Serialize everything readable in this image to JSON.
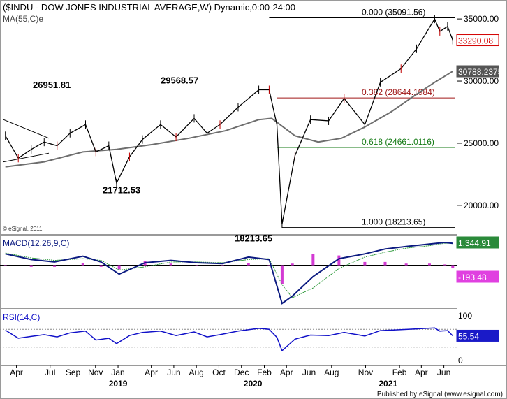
{
  "title": "($INDU - DOW JONES INDUSTRIAL AVERAGE,W) Dynamic,0:00-24:00",
  "ma_label": "MA(55,C)e",
  "copyright": "© eSignal, 2011",
  "published": "Published by eSignal (www.esignal.com)",
  "colors": {
    "price": "#000000",
    "ma": "#6e6e6e",
    "fib_0": "#000000",
    "fib_382": "#a01818",
    "fib_618": "#137a13",
    "fib_100": "#000000",
    "macd": "#0b1a80",
    "signal": "#2f9a3c",
    "hist": "#d33ad3",
    "rsi": "#1010c8",
    "last_price_bg": "#ffffff",
    "last_price_fg": "#d40000",
    "ma_tag_bg": "#555555",
    "macd_tag_bg": "#2a8a3a",
    "hist_tag_bg": "#e040e0",
    "rsi_tag_bg": "#1a1ac8"
  },
  "chart_data": [
    {
      "type": "line",
      "panel": "price",
      "title": "($INDU - DOW JONES INDUSTRIAL AVERAGE,W) Dynamic,0:00-24:00",
      "ylim": [
        17800,
        36300
      ],
      "yticks": [
        "35000.00",
        "30000.00",
        "25000.00",
        "20000.00"
      ],
      "ytick_values": [
        35000,
        30000,
        25000,
        20000
      ],
      "x_tick_labels": [
        "Apr",
        "Jul",
        "Sep",
        "Nov",
        "Jan",
        "Apr",
        "Jun",
        "Aug",
        "Oct",
        "Dec",
        "Feb",
        "Apr",
        "Jun",
        "Aug",
        "Nov",
        "Feb",
        "Apr",
        "Jun"
      ],
      "x_year_labels": [
        "2019",
        "2020",
        "2021"
      ],
      "series": [
        {
          "name": "$INDU",
          "x": [
            "2018-03-02",
            "2018-04-06",
            "2018-05-11",
            "2018-06-15",
            "2018-07-20",
            "2018-08-24",
            "2018-10-05",
            "2018-11-02",
            "2018-12-07",
            "2018-12-28",
            "2019-02-01",
            "2019-03-08",
            "2019-04-26",
            "2019-06-07",
            "2019-07-26",
            "2019-08-30",
            "2019-10-04",
            "2019-11-22",
            "2020-01-17",
            "2020-02-14",
            "2020-03-06",
            "2020-03-20",
            "2020-04-24",
            "2020-06-05",
            "2020-07-24",
            "2020-09-04",
            "2020-10-30",
            "2020-12-11",
            "2021-02-05",
            "2021-03-19",
            "2021-05-07",
            "2021-05-21",
            "2021-06-11",
            "2021-06-25"
          ],
          "values": [
            25600,
            23800,
            24500,
            25100,
            24800,
            25800,
            26500,
            24300,
            24800,
            21800,
            23900,
            25300,
            26500,
            25500,
            27000,
            25800,
            26500,
            27900,
            29300,
            29300,
            26500,
            18500,
            24000,
            26900,
            26800,
            28600,
            26500,
            29900,
            31000,
            32600,
            35000,
            34000,
            34400,
            33290.08
          ]
        },
        {
          "name": "MA(55,C)e",
          "x": [
            "2018-03-02",
            "2018-06-15",
            "2018-09-28",
            "2018-12-28",
            "2019-04-05",
            "2019-07-12",
            "2019-10-18",
            "2020-01-17",
            "2020-02-21",
            "2020-04-24",
            "2020-06-26",
            "2020-08-28",
            "2020-10-30",
            "2021-01-08",
            "2021-03-12",
            "2021-05-07",
            "2021-06-25"
          ],
          "values": [
            23100,
            23500,
            24300,
            24500,
            24900,
            25400,
            26000,
            26900,
            27000,
            25600,
            25100,
            25400,
            26300,
            27500,
            28800,
            29900,
            30788.2375
          ]
        }
      ],
      "fibonacci": [
        {
          "label": "0.000 (35091.56)",
          "value": 35091.56
        },
        {
          "label": "0.382 (28644.1984)",
          "value": 28644.1984
        },
        {
          "label": "0.618 (24661.0116)",
          "value": 24661.0116
        },
        {
          "label": "1.000 (18213.65)",
          "value": 18213.65
        }
      ],
      "annotations": [
        {
          "text": "26951.81",
          "x": "2018-03-09",
          "y": 26951.81
        },
        {
          "text": "21712.53",
          "x": "2018-12-28",
          "y": 21712.53
        },
        {
          "text": "29568.57",
          "x": "2020-02-14",
          "y": 29568.57
        },
        {
          "text": "18213.65",
          "x": "2020-03-20",
          "y": 18213.65
        }
      ],
      "tags": {
        "last": "33290.08",
        "ma": "30788.2375"
      }
    },
    {
      "type": "line",
      "panel": "macd",
      "title": "MACD(12,26,9,C)",
      "ylim": [
        -2600,
        1700
      ],
      "zero": 0,
      "series": [
        {
          "name": "MACD",
          "x": [
            "2018-03-02",
            "2018-05-11",
            "2018-07-13",
            "2018-09-28",
            "2018-11-16",
            "2019-01-04",
            "2019-03-15",
            "2019-05-24",
            "2019-08-02",
            "2019-10-11",
            "2019-12-20",
            "2020-02-14",
            "2020-03-20",
            "2020-04-17",
            "2020-06-12",
            "2020-08-21",
            "2020-10-30",
            "2020-12-24",
            "2021-02-19",
            "2021-04-23",
            "2021-06-04",
            "2021-06-25"
          ],
          "values": [
            700,
            350,
            200,
            550,
            200,
            -550,
            150,
            300,
            150,
            100,
            500,
            350,
            -2350,
            -1900,
            -700,
            400,
            700,
            1000,
            1150,
            1300,
            1400,
            1344.91
          ]
        },
        {
          "name": "Signal",
          "x": [
            "2018-03-02",
            "2018-05-11",
            "2018-07-13",
            "2018-09-28",
            "2018-11-16",
            "2019-01-04",
            "2019-03-15",
            "2019-05-24",
            "2019-08-02",
            "2019-10-11",
            "2019-12-20",
            "2020-02-14",
            "2020-03-20",
            "2020-04-17",
            "2020-06-12",
            "2020-08-21",
            "2020-10-30",
            "2020-12-24",
            "2021-02-19",
            "2021-04-23",
            "2021-06-04",
            "2021-06-25"
          ],
          "values": [
            750,
            450,
            300,
            400,
            300,
            -300,
            -100,
            200,
            200,
            150,
            350,
            400,
            -1200,
            -2000,
            -1400,
            -200,
            500,
            800,
            1050,
            1200,
            1350,
            1350
          ]
        },
        {
          "name": "Histogram",
          "x": [
            "2018-03-02",
            "2018-05-11",
            "2018-07-13",
            "2018-09-28",
            "2018-11-16",
            "2019-01-04",
            "2019-03-15",
            "2019-05-24",
            "2019-08-02",
            "2019-10-11",
            "2019-12-20",
            "2020-02-14",
            "2020-03-20",
            "2020-04-17",
            "2020-06-12",
            "2020-08-21",
            "2020-10-30",
            "2020-12-24",
            "2021-02-19",
            "2021-04-23",
            "2021-06-04",
            "2021-06-25"
          ],
          "values": [
            -50,
            -100,
            -100,
            150,
            -100,
            -250,
            250,
            100,
            -50,
            -50,
            150,
            -50,
            -1150,
            100,
            700,
            600,
            200,
            200,
            100,
            100,
            50,
            -193.48
          ]
        }
      ],
      "tags": {
        "macd": "1,344.91",
        "hist": "-193.48"
      }
    },
    {
      "type": "line",
      "panel": "rsi",
      "title": "RSI(14,C)",
      "ylim": [
        0,
        100
      ],
      "yticks": [
        "100",
        "0"
      ],
      "ytick_values": [
        100,
        0
      ],
      "levels": [
        70,
        30
      ],
      "series": [
        {
          "name": "RSI",
          "x": [
            "2018-03-02",
            "2018-04-06",
            "2018-05-11",
            "2018-06-15",
            "2018-07-20",
            "2018-08-24",
            "2018-10-05",
            "2018-11-02",
            "2018-12-07",
            "2018-12-28",
            "2019-02-01",
            "2019-03-08",
            "2019-04-26",
            "2019-06-07",
            "2019-07-26",
            "2019-08-30",
            "2019-10-04",
            "2019-11-22",
            "2020-01-17",
            "2020-02-14",
            "2020-03-06",
            "2020-03-20",
            "2020-04-24",
            "2020-06-05",
            "2020-07-24",
            "2020-09-04",
            "2020-10-30",
            "2020-12-11",
            "2021-02-05",
            "2021-03-19",
            "2021-05-07",
            "2021-05-21",
            "2021-06-11",
            "2021-06-25"
          ],
          "values": [
            68,
            50,
            54,
            58,
            53,
            62,
            66,
            46,
            50,
            38,
            56,
            63,
            66,
            56,
            64,
            53,
            58,
            66,
            72,
            70,
            52,
            22,
            48,
            57,
            56,
            63,
            55,
            67,
            69,
            71,
            73,
            66,
            67,
            55.54
          ]
        }
      ],
      "tags": {
        "rsi": "55.54"
      }
    }
  ]
}
